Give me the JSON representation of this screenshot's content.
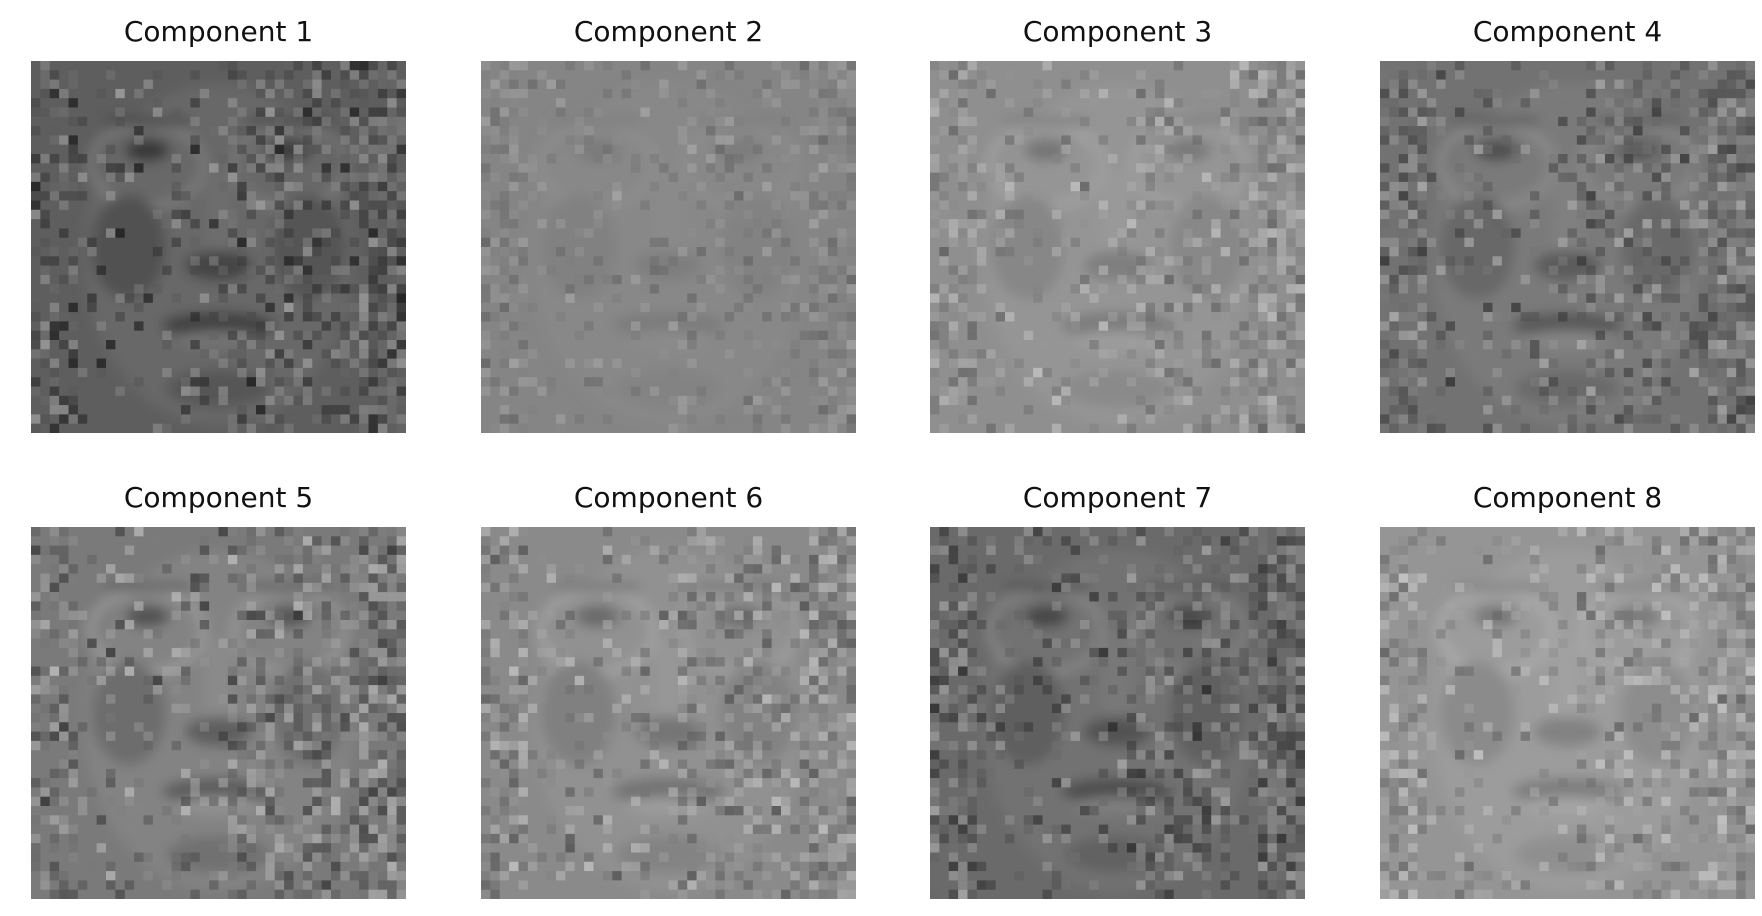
{
  "figure": {
    "panels": [
      {
        "title": "Component 1",
        "tone": "#5e5e5e",
        "contrast": 0.85
      },
      {
        "title": "Component 2",
        "tone": "#858585",
        "contrast": 0.25
      },
      {
        "title": "Component 3",
        "tone": "#8f8f8f",
        "contrast": 0.55
      },
      {
        "title": "Component 4",
        "tone": "#727272",
        "contrast": 0.75
      },
      {
        "title": "Component 5",
        "tone": "#7a7a7a",
        "contrast": 0.9
      },
      {
        "title": "Component 6",
        "tone": "#8a8a8a",
        "contrast": 0.7
      },
      {
        "title": "Component 7",
        "tone": "#6a6a6a",
        "contrast": 0.8
      },
      {
        "title": "Component 8",
        "tone": "#959595",
        "contrast": 0.65
      }
    ]
  }
}
